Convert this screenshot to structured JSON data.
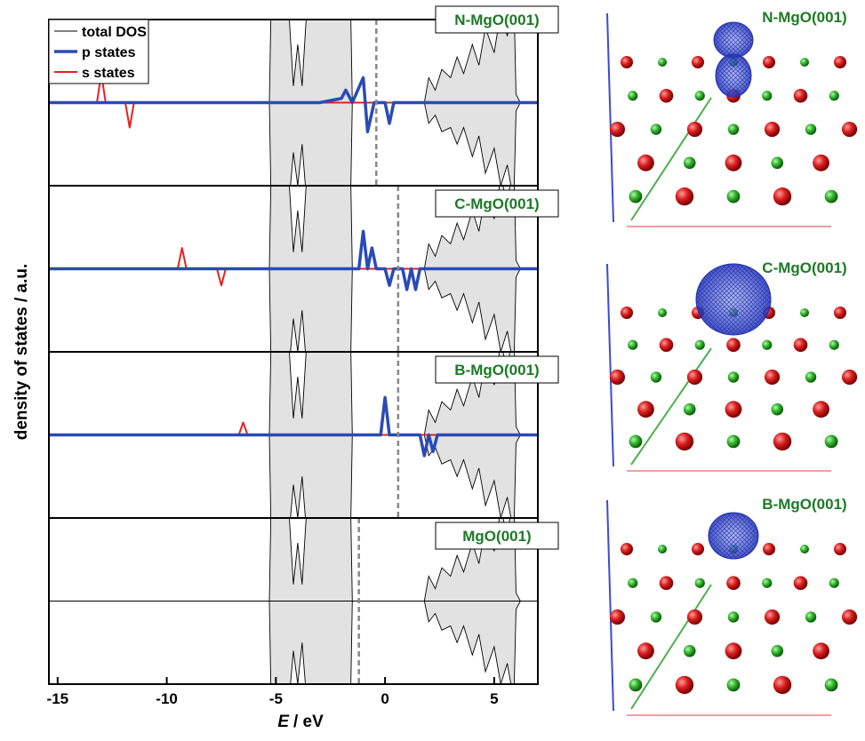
{
  "chart_data": {
    "type": "dos-panels",
    "ylabel": "density of states / a.u.",
    "xlabel_var": "E",
    "xlabel_unit": "/ eV",
    "xlim": [
      -15.4,
      7
    ],
    "xticks": [
      -15,
      -10,
      -5,
      0,
      5
    ],
    "ylim": [
      -1,
      1
    ],
    "legend_position": "upper left",
    "legend": [
      {
        "name": "total DOS",
        "color": "#000000"
      },
      {
        "name": "p states",
        "color": "#2a4bb5"
      },
      {
        "name": "s states",
        "color": "#e8201e"
      }
    ],
    "total_dos": {
      "x": [
        -15.4,
        -5.3,
        -5.2,
        -4.5,
        -4.2,
        -4.0,
        -3.8,
        -3.5,
        -3.0,
        -2.0,
        -1.6,
        -1.5,
        1.8,
        2.0,
        2.3,
        2.6,
        3.0,
        3.3,
        3.6,
        4.0,
        4.3,
        4.6,
        5.0,
        5.3,
        5.6,
        5.9,
        6.0,
        6.2,
        7.0
      ],
      "up": [
        0,
        0,
        1.5,
        1.5,
        0.2,
        0.7,
        0.2,
        1.5,
        1.5,
        1.5,
        1.5,
        0,
        0,
        0.3,
        0.15,
        0.4,
        0.3,
        0.55,
        0.35,
        0.7,
        0.45,
        0.9,
        0.6,
        1.1,
        0.8,
        1.3,
        0.1,
        0,
        0
      ],
      "down": [
        0,
        0,
        -1.5,
        -1.5,
        -0.6,
        -1.0,
        -0.5,
        -1.5,
        -1.5,
        -1.5,
        -1.5,
        0,
        0,
        -0.25,
        -0.15,
        -0.35,
        -0.3,
        -0.5,
        -0.3,
        -0.65,
        -0.4,
        -0.85,
        -0.55,
        -1.0,
        -0.75,
        -1.2,
        -0.1,
        0,
        0
      ]
    },
    "panels": [
      {
        "label": "N-MgO(001)",
        "fermi": -0.4,
        "p": {
          "x": [
            -15.4,
            -3,
            -2,
            -1.8,
            -1.5,
            -1.0,
            -0.8,
            -0.5,
            -0.3,
            0,
            0.2,
            0.4,
            7
          ],
          "values": [
            0,
            0,
            0.05,
            0.15,
            0,
            0.3,
            -0.35,
            0,
            0,
            0,
            -0.25,
            0,
            0
          ]
        },
        "s": {
          "x": [
            -15.4,
            -13.2,
            -13.0,
            -12.8,
            -11.9,
            -11.7,
            -11.5,
            7
          ],
          "values": [
            0,
            0,
            0.35,
            0,
            0,
            -0.3,
            0,
            0
          ]
        }
      },
      {
        "label": "C-MgO(001)",
        "fermi": 0.6,
        "p": {
          "x": [
            -15.4,
            -1.2,
            -1.0,
            -0.8,
            -0.6,
            -0.4,
            -0.2,
            0,
            0.2,
            0.4,
            0.8,
            1.0,
            1.2,
            1.4,
            1.6,
            7
          ],
          "values": [
            0,
            0,
            0.45,
            0,
            0.25,
            0,
            0,
            0,
            -0.2,
            0,
            0,
            -0.25,
            0,
            -0.25,
            0,
            0
          ]
        },
        "s": {
          "x": [
            -15.4,
            -9.5,
            -9.3,
            -9.1,
            -7.7,
            -7.5,
            -7.3,
            7
          ],
          "values": [
            0,
            0,
            0.25,
            0,
            0,
            -0.2,
            0,
            0
          ]
        }
      },
      {
        "label": "B-MgO(001)",
        "fermi": 0.6,
        "p": {
          "x": [
            -15.4,
            -0.2,
            0,
            0.2,
            0.4,
            1.6,
            1.8,
            2.0,
            2.2,
            2.4,
            7
          ],
          "values": [
            0,
            0,
            0.45,
            0,
            0,
            0,
            -0.25,
            0,
            -0.2,
            0,
            0
          ]
        },
        "s": {
          "x": [
            -15.4,
            -6.7,
            -6.5,
            -6.3,
            7
          ],
          "values": [
            0,
            0,
            0.15,
            0,
            0
          ]
        }
      },
      {
        "label": "MgO(001)",
        "fermi": -1.2
      }
    ],
    "structure_labels": [
      "N-MgO(001)",
      "C-MgO(001)",
      "B-MgO(001)"
    ]
  }
}
